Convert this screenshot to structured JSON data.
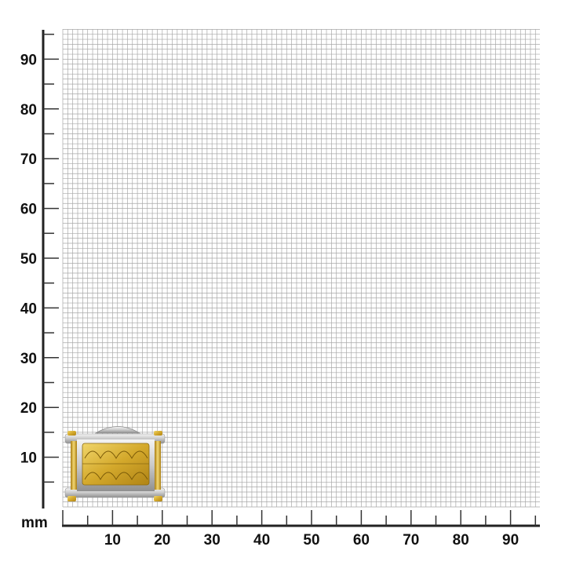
{
  "unit_label": "mm",
  "x_axis": {
    "ticks": [
      "10",
      "20",
      "30",
      "40",
      "50",
      "60",
      "70",
      "80",
      "90"
    ],
    "range": [
      0,
      96
    ]
  },
  "y_axis": {
    "ticks": [
      "10",
      "20",
      "30",
      "40",
      "50",
      "60",
      "70",
      "80",
      "90"
    ],
    "range": [
      0,
      96
    ]
  },
  "grid": {
    "minor_step_mm": 1,
    "color": "#a8a8a8"
  },
  "product": {
    "name_icon": "two-tone-cufflink",
    "colors": {
      "gold": "#d9b43a",
      "steel": "#d8d8d8"
    }
  }
}
